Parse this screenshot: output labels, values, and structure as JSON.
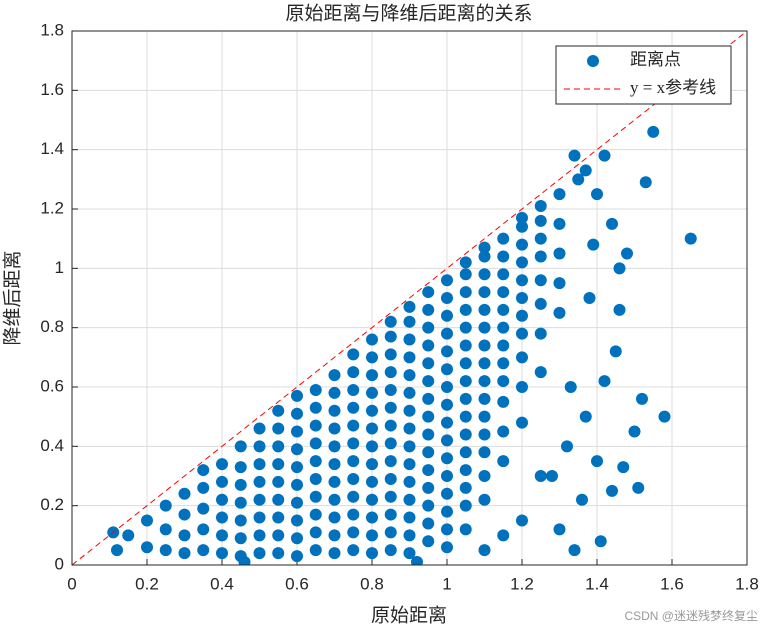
{
  "chart_data": {
    "type": "scatter",
    "title": "原始距离与降维后距离的关系",
    "x_label": "原始距离",
    "y_label": "降维后距离",
    "xlim": [
      0,
      1.8
    ],
    "ylim": [
      0,
      1.8
    ],
    "xticks": [
      0,
      0.2,
      0.4,
      0.6,
      0.8,
      1,
      1.2,
      1.4,
      1.6,
      1.8
    ],
    "yticks": [
      0,
      0.2,
      0.4,
      0.6,
      0.8,
      1,
      1.2,
      1.4,
      1.6,
      1.8
    ],
    "grid": true,
    "legend": "northeast",
    "watermark": "CSDN @迷迷残梦终复尘",
    "series": [
      {
        "name": "距离点",
        "color": "#0072bd",
        "x": [
          0.15,
          0.2,
          0.2,
          0.25,
          0.25,
          0.25,
          0.3,
          0.3,
          0.3,
          0.3,
          0.35,
          0.35,
          0.35,
          0.35,
          0.35,
          0.4,
          0.4,
          0.4,
          0.4,
          0.4,
          0.4,
          0.45,
          0.45,
          0.45,
          0.45,
          0.45,
          0.45,
          0.45,
          0.5,
          0.5,
          0.5,
          0.5,
          0.5,
          0.5,
          0.5,
          0.5,
          0.55,
          0.55,
          0.55,
          0.55,
          0.55,
          0.55,
          0.55,
          0.55,
          0.55,
          0.6,
          0.6,
          0.6,
          0.6,
          0.6,
          0.6,
          0.6,
          0.6,
          0.6,
          0.6,
          0.65,
          0.65,
          0.65,
          0.65,
          0.65,
          0.65,
          0.65,
          0.65,
          0.65,
          0.65,
          0.7,
          0.7,
          0.7,
          0.7,
          0.7,
          0.7,
          0.7,
          0.7,
          0.7,
          0.7,
          0.7,
          0.75,
          0.75,
          0.75,
          0.75,
          0.75,
          0.75,
          0.75,
          0.75,
          0.75,
          0.75,
          0.75,
          0.75,
          0.8,
          0.8,
          0.8,
          0.8,
          0.8,
          0.8,
          0.8,
          0.8,
          0.8,
          0.8,
          0.8,
          0.8,
          0.8,
          0.85,
          0.85,
          0.85,
          0.85,
          0.85,
          0.85,
          0.85,
          0.85,
          0.85,
          0.85,
          0.85,
          0.85,
          0.85,
          0.85,
          0.9,
          0.9,
          0.9,
          0.9,
          0.9,
          0.9,
          0.9,
          0.9,
          0.9,
          0.9,
          0.9,
          0.9,
          0.9,
          0.9,
          0.9,
          0.95,
          0.95,
          0.95,
          0.95,
          0.95,
          0.95,
          0.95,
          0.95,
          0.95,
          0.95,
          0.95,
          0.95,
          0.95,
          0.95,
          0.95,
          1.0,
          1.0,
          1.0,
          1.0,
          1.0,
          1.0,
          1.0,
          1.0,
          1.0,
          1.0,
          1.0,
          1.0,
          1.0,
          1.0,
          1.0,
          1.0,
          1.05,
          1.05,
          1.05,
          1.05,
          1.05,
          1.05,
          1.05,
          1.05,
          1.05,
          1.05,
          1.05,
          1.05,
          1.05,
          1.05,
          1.05,
          1.05,
          1.1,
          1.1,
          1.1,
          1.1,
          1.1,
          1.1,
          1.1,
          1.1,
          1.1,
          1.1,
          1.1,
          1.1,
          1.1,
          1.1,
          1.1,
          1.15,
          1.15,
          1.15,
          1.15,
          1.15,
          1.15,
          1.15,
          1.15,
          1.15,
          1.15,
          1.15,
          1.15,
          1.2,
          1.2,
          1.2,
          1.2,
          1.2,
          1.2,
          1.2,
          1.2,
          1.2,
          1.2,
          1.2,
          1.25,
          1.25,
          1.25,
          1.25,
          1.25,
          1.25,
          1.25,
          1.25,
          1.3,
          1.3,
          1.3,
          1.3,
          1.3,
          1.55,
          1.65,
          1.58,
          1.53,
          1.52,
          1.5,
          1.41,
          1.34,
          1.51,
          1.47,
          1.36,
          1.4,
          1.42,
          1.45,
          1.38,
          1.46,
          1.48,
          1.44,
          1.42,
          1.35,
          1.4,
          1.33,
          1.32,
          1.3,
          1.25,
          1.2,
          1.15,
          1.1,
          0.92,
          0.46,
          0.11,
          0.12,
          1.37,
          1.44,
          1.39,
          1.46,
          1.34,
          1.37,
          1.28
        ],
        "values": [
          0.1,
          0.06,
          0.15,
          0.05,
          0.12,
          0.2,
          0.04,
          0.1,
          0.17,
          0.24,
          0.05,
          0.12,
          0.19,
          0.26,
          0.32,
          0.04,
          0.1,
          0.16,
          0.22,
          0.28,
          0.34,
          0.03,
          0.09,
          0.15,
          0.21,
          0.27,
          0.33,
          0.4,
          0.04,
          0.1,
          0.16,
          0.22,
          0.28,
          0.34,
          0.4,
          0.46,
          0.04,
          0.1,
          0.16,
          0.22,
          0.28,
          0.34,
          0.4,
          0.46,
          0.52,
          0.03,
          0.09,
          0.15,
          0.21,
          0.27,
          0.33,
          0.39,
          0.45,
          0.51,
          0.57,
          0.05,
          0.11,
          0.17,
          0.23,
          0.29,
          0.35,
          0.41,
          0.47,
          0.53,
          0.59,
          0.04,
          0.1,
          0.16,
          0.22,
          0.28,
          0.34,
          0.4,
          0.46,
          0.52,
          0.58,
          0.64,
          0.05,
          0.11,
          0.17,
          0.23,
          0.29,
          0.35,
          0.41,
          0.47,
          0.53,
          0.59,
          0.65,
          0.71,
          0.04,
          0.1,
          0.16,
          0.22,
          0.28,
          0.34,
          0.4,
          0.46,
          0.52,
          0.58,
          0.64,
          0.7,
          0.76,
          0.05,
          0.11,
          0.17,
          0.23,
          0.29,
          0.35,
          0.41,
          0.47,
          0.53,
          0.59,
          0.65,
          0.71,
          0.77,
          0.82,
          0.04,
          0.1,
          0.16,
          0.22,
          0.28,
          0.34,
          0.4,
          0.46,
          0.52,
          0.58,
          0.64,
          0.7,
          0.76,
          0.82,
          0.87,
          0.08,
          0.14,
          0.2,
          0.26,
          0.32,
          0.38,
          0.44,
          0.5,
          0.56,
          0.62,
          0.68,
          0.74,
          0.8,
          0.86,
          0.92,
          0.06,
          0.12,
          0.18,
          0.24,
          0.3,
          0.36,
          0.42,
          0.48,
          0.54,
          0.6,
          0.66,
          0.72,
          0.78,
          0.84,
          0.9,
          0.96,
          0.12,
          0.2,
          0.26,
          0.32,
          0.38,
          0.44,
          0.5,
          0.56,
          0.62,
          0.68,
          0.74,
          0.8,
          0.86,
          0.92,
          0.98,
          1.02,
          0.22,
          0.3,
          0.38,
          0.44,
          0.5,
          0.56,
          0.62,
          0.68,
          0.74,
          0.8,
          0.86,
          0.92,
          0.98,
          1.04,
          1.07,
          0.35,
          0.45,
          0.55,
          0.62,
          0.68,
          0.74,
          0.8,
          0.86,
          0.92,
          0.98,
          1.04,
          1.1,
          0.48,
          0.6,
          0.7,
          0.78,
          0.84,
          0.9,
          0.96,
          1.02,
          1.08,
          1.14,
          1.17,
          0.65,
          0.78,
          0.88,
          0.96,
          1.04,
          1.1,
          1.16,
          1.21,
          0.85,
          0.95,
          1.05,
          1.15,
          1.25,
          1.46,
          1.1,
          0.5,
          1.29,
          0.56,
          0.45,
          0.08,
          0.05,
          0.26,
          0.33,
          0.22,
          0.35,
          0.62,
          0.72,
          0.9,
          1.0,
          1.05,
          1.15,
          1.38,
          1.3,
          1.25,
          0.6,
          0.4,
          0.12,
          0.3,
          0.15,
          0.1,
          0.05,
          0.01,
          0.01,
          0.11,
          0.05,
          0.5,
          0.25,
          1.08,
          0.86,
          1.38,
          1.33,
          0.3
        ]
      },
      {
        "name": "y = x参考线",
        "type": "line",
        "color": "#ff0000",
        "dashed": true,
        "x": [
          0,
          1.8
        ],
        "values": [
          0,
          1.8
        ]
      }
    ]
  }
}
